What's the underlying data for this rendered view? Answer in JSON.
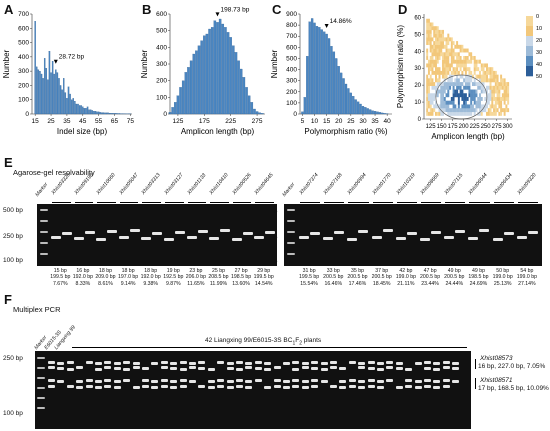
{
  "panels": {
    "A": "A",
    "B": "B",
    "C": "C",
    "D": "D",
    "E": "E",
    "F": "F"
  },
  "chart_data": [
    {
      "type": "bar",
      "xlabel": "Indel size (bp)",
      "ylabel": "Number",
      "xlim": [
        13,
        76
      ],
      "ylim": [
        0,
        700
      ],
      "xticks": [
        "15",
        "25",
        "35",
        "45",
        "55",
        "65",
        "75"
      ],
      "yticks": [
        "0",
        "100",
        "200",
        "300",
        "400",
        "500",
        "600",
        "700"
      ],
      "annotation": "28.72 bp",
      "x": [
        15,
        16,
        17,
        18,
        19,
        20,
        21,
        22,
        23,
        24,
        25,
        26,
        27,
        28,
        29,
        30,
        31,
        32,
        33,
        34,
        35,
        36,
        37,
        38,
        39,
        40,
        41,
        42,
        43,
        44,
        45,
        46,
        47,
        48,
        49,
        50,
        51,
        52,
        53,
        54,
        55,
        56,
        57,
        58,
        59,
        60,
        61,
        62,
        63,
        64,
        65,
        66,
        67,
        68,
        69,
        70,
        71,
        72,
        73,
        74,
        75
      ],
      "values": [
        650,
        330,
        310,
        300,
        280,
        250,
        390,
        320,
        240,
        440,
        290,
        370,
        280,
        310,
        290,
        250,
        200,
        170,
        250,
        150,
        110,
        190,
        140,
        100,
        110,
        90,
        70,
        70,
        60,
        60,
        50,
        40,
        40,
        50,
        30,
        30,
        25,
        20,
        20,
        15,
        15,
        12,
        10,
        10,
        8,
        8,
        8,
        6,
        5,
        5,
        5,
        5,
        4,
        4,
        3,
        3,
        3,
        2,
        2,
        2,
        2
      ]
    },
    {
      "type": "bar",
      "xlabel": "Amplicon length (bp)",
      "ylabel": "Number",
      "xlim": [
        110,
        290
      ],
      "ylim": [
        0,
        600
      ],
      "xticks": [
        "125",
        "175",
        "225",
        "275"
      ],
      "yticks": [
        "0",
        "100",
        "200",
        "300",
        "400",
        "500",
        "600"
      ],
      "annotation": "198.73 bp",
      "x": [
        110,
        115,
        120,
        125,
        130,
        135,
        140,
        145,
        150,
        155,
        160,
        165,
        170,
        175,
        180,
        185,
        190,
        195,
        200,
        205,
        210,
        215,
        220,
        225,
        230,
        235,
        240,
        245,
        250,
        255,
        260,
        265,
        270,
        275,
        280,
        285
      ],
      "values": [
        10,
        40,
        70,
        110,
        160,
        200,
        250,
        280,
        320,
        360,
        380,
        410,
        440,
        470,
        480,
        510,
        520,
        560,
        550,
        570,
        540,
        520,
        490,
        460,
        410,
        370,
        320,
        270,
        220,
        160,
        110,
        70,
        30,
        15,
        8,
        4
      ]
    },
    {
      "type": "bar",
      "xlabel": "Polymorphism ratio (%)",
      "ylabel": "Number",
      "xlim": [
        4,
        42
      ],
      "ylim": [
        0,
        900
      ],
      "xticks": [
        "5",
        "10",
        "15",
        "20",
        "25",
        "30",
        "35",
        "40"
      ],
      "yticks": [
        "0",
        "100",
        "200",
        "300",
        "400",
        "500",
        "600",
        "700",
        "800",
        "900"
      ],
      "annotation": "14.86%",
      "x": [
        5,
        6,
        7,
        8,
        9,
        10,
        11,
        12,
        13,
        14,
        15,
        16,
        17,
        18,
        19,
        20,
        21,
        22,
        23,
        24,
        25,
        26,
        27,
        28,
        29,
        30,
        31,
        32,
        33,
        34,
        35,
        36,
        37,
        38,
        39,
        40
      ],
      "values": [
        20,
        150,
        520,
        830,
        860,
        820,
        790,
        780,
        760,
        740,
        720,
        680,
        610,
        560,
        500,
        430,
        370,
        320,
        270,
        230,
        190,
        160,
        130,
        110,
        90,
        70,
        60,
        50,
        40,
        30,
        25,
        20,
        15,
        10,
        6,
        4
      ]
    },
    {
      "type": "heatmap",
      "xlabel": "Amplicon length (bp)",
      "ylabel": "Polymorphism ratio (%)",
      "xlim": [
        110,
        310
      ],
      "ylim": [
        0,
        62
      ],
      "xticks": [
        "125",
        "150",
        "175",
        "200",
        "225",
        "250",
        "275",
        "300"
      ],
      "yticks": [
        "0",
        "10",
        "20",
        "30",
        "40",
        "50",
        "60"
      ],
      "legend": [
        "0",
        "10",
        "20",
        "30",
        "40",
        "50"
      ],
      "colors": [
        "#f6d89a",
        "#f2c77a",
        "#c9d8e8",
        "#9dbbd8",
        "#5c8fc0",
        "#2c5e99"
      ]
    }
  ],
  "gel_e": {
    "title": "Agarose-gel resolvability",
    "size_labels": [
      "500 bp",
      "250 bp",
      "100 bp"
    ],
    "marker": "Marker",
    "left_lanes": [
      "Xhist03320",
      "Xhist09190",
      "Xhist10660",
      "Xhist05047",
      "Xhist03313",
      "Xhist03127",
      "Xhist01133",
      "Xhist10410",
      "Xhist00526",
      "Xhist04645"
    ],
    "right_lanes": [
      "Xhist07374",
      "Xhist07168",
      "Xhist06994",
      "Xhist01770",
      "Xhist10319",
      "Xhist08669",
      "Xhist07115",
      "Xhist06544",
      "Xhist06434",
      "Xhist09320"
    ],
    "left_info": [
      [
        "15 bp",
        "199.5 bp",
        "7.67%"
      ],
      [
        "16 bp",
        "192.0 bp",
        "8.33%"
      ],
      [
        "18 bp",
        "209.0 bp",
        "8.61%"
      ],
      [
        "18 bp",
        "197.0 bp",
        "9.14%"
      ],
      [
        "18 bp",
        "192.0 bp",
        "9.38%"
      ],
      [
        "19 bp",
        "192.5 bp",
        "9.87%"
      ],
      [
        "23 bp",
        "206.0 bp",
        "11.65%"
      ],
      [
        "25 bp",
        "208.5 bp",
        "11.99%"
      ],
      [
        "27 bp",
        "198.5 bp",
        "13.60%"
      ],
      [
        "29 bp",
        "199.5 bp",
        "14.54%"
      ]
    ],
    "right_info": [
      [
        "31 bp",
        "199.5 bp",
        "15.54%"
      ],
      [
        "33 bp",
        "200.5 bp",
        "16.46%"
      ],
      [
        "35 bp",
        "200.5 bp",
        "17.46%"
      ],
      [
        "37 bp",
        "200.5 bp",
        "18.45%"
      ],
      [
        "42 bp",
        "199.0 bp",
        "21.11%"
      ],
      [
        "47 bp",
        "200.5 bp",
        "23.44%"
      ],
      [
        "49 bp",
        "200.5 bp",
        "24.44%"
      ],
      [
        "49 bp",
        "198.5 bp",
        "24.69%"
      ],
      [
        "50 bp",
        "199.0 bp",
        "25.13%"
      ],
      [
        "54 bp",
        "199.0 bp",
        "27.14%"
      ]
    ]
  },
  "gel_f": {
    "title": "Multiplex PCR",
    "lanes": [
      "Marker",
      "E6015-3S",
      "Liangxing 99"
    ],
    "population": "42 Liangxing 99/E6015-3S BC",
    "pop_sub1": "1",
    "pop_mid": "F",
    "pop_sub2": "2",
    "pop_end": " plants",
    "size_labels": [
      "250 bp",
      "100 bp"
    ],
    "marker1_name": "Xhist08573",
    "marker1_info": "16 bp, 227.0 bp, 7.05%",
    "marker2_name": "Xhist08571",
    "marker2_info": "17 bp, 168.5 bp, 10.09%"
  }
}
